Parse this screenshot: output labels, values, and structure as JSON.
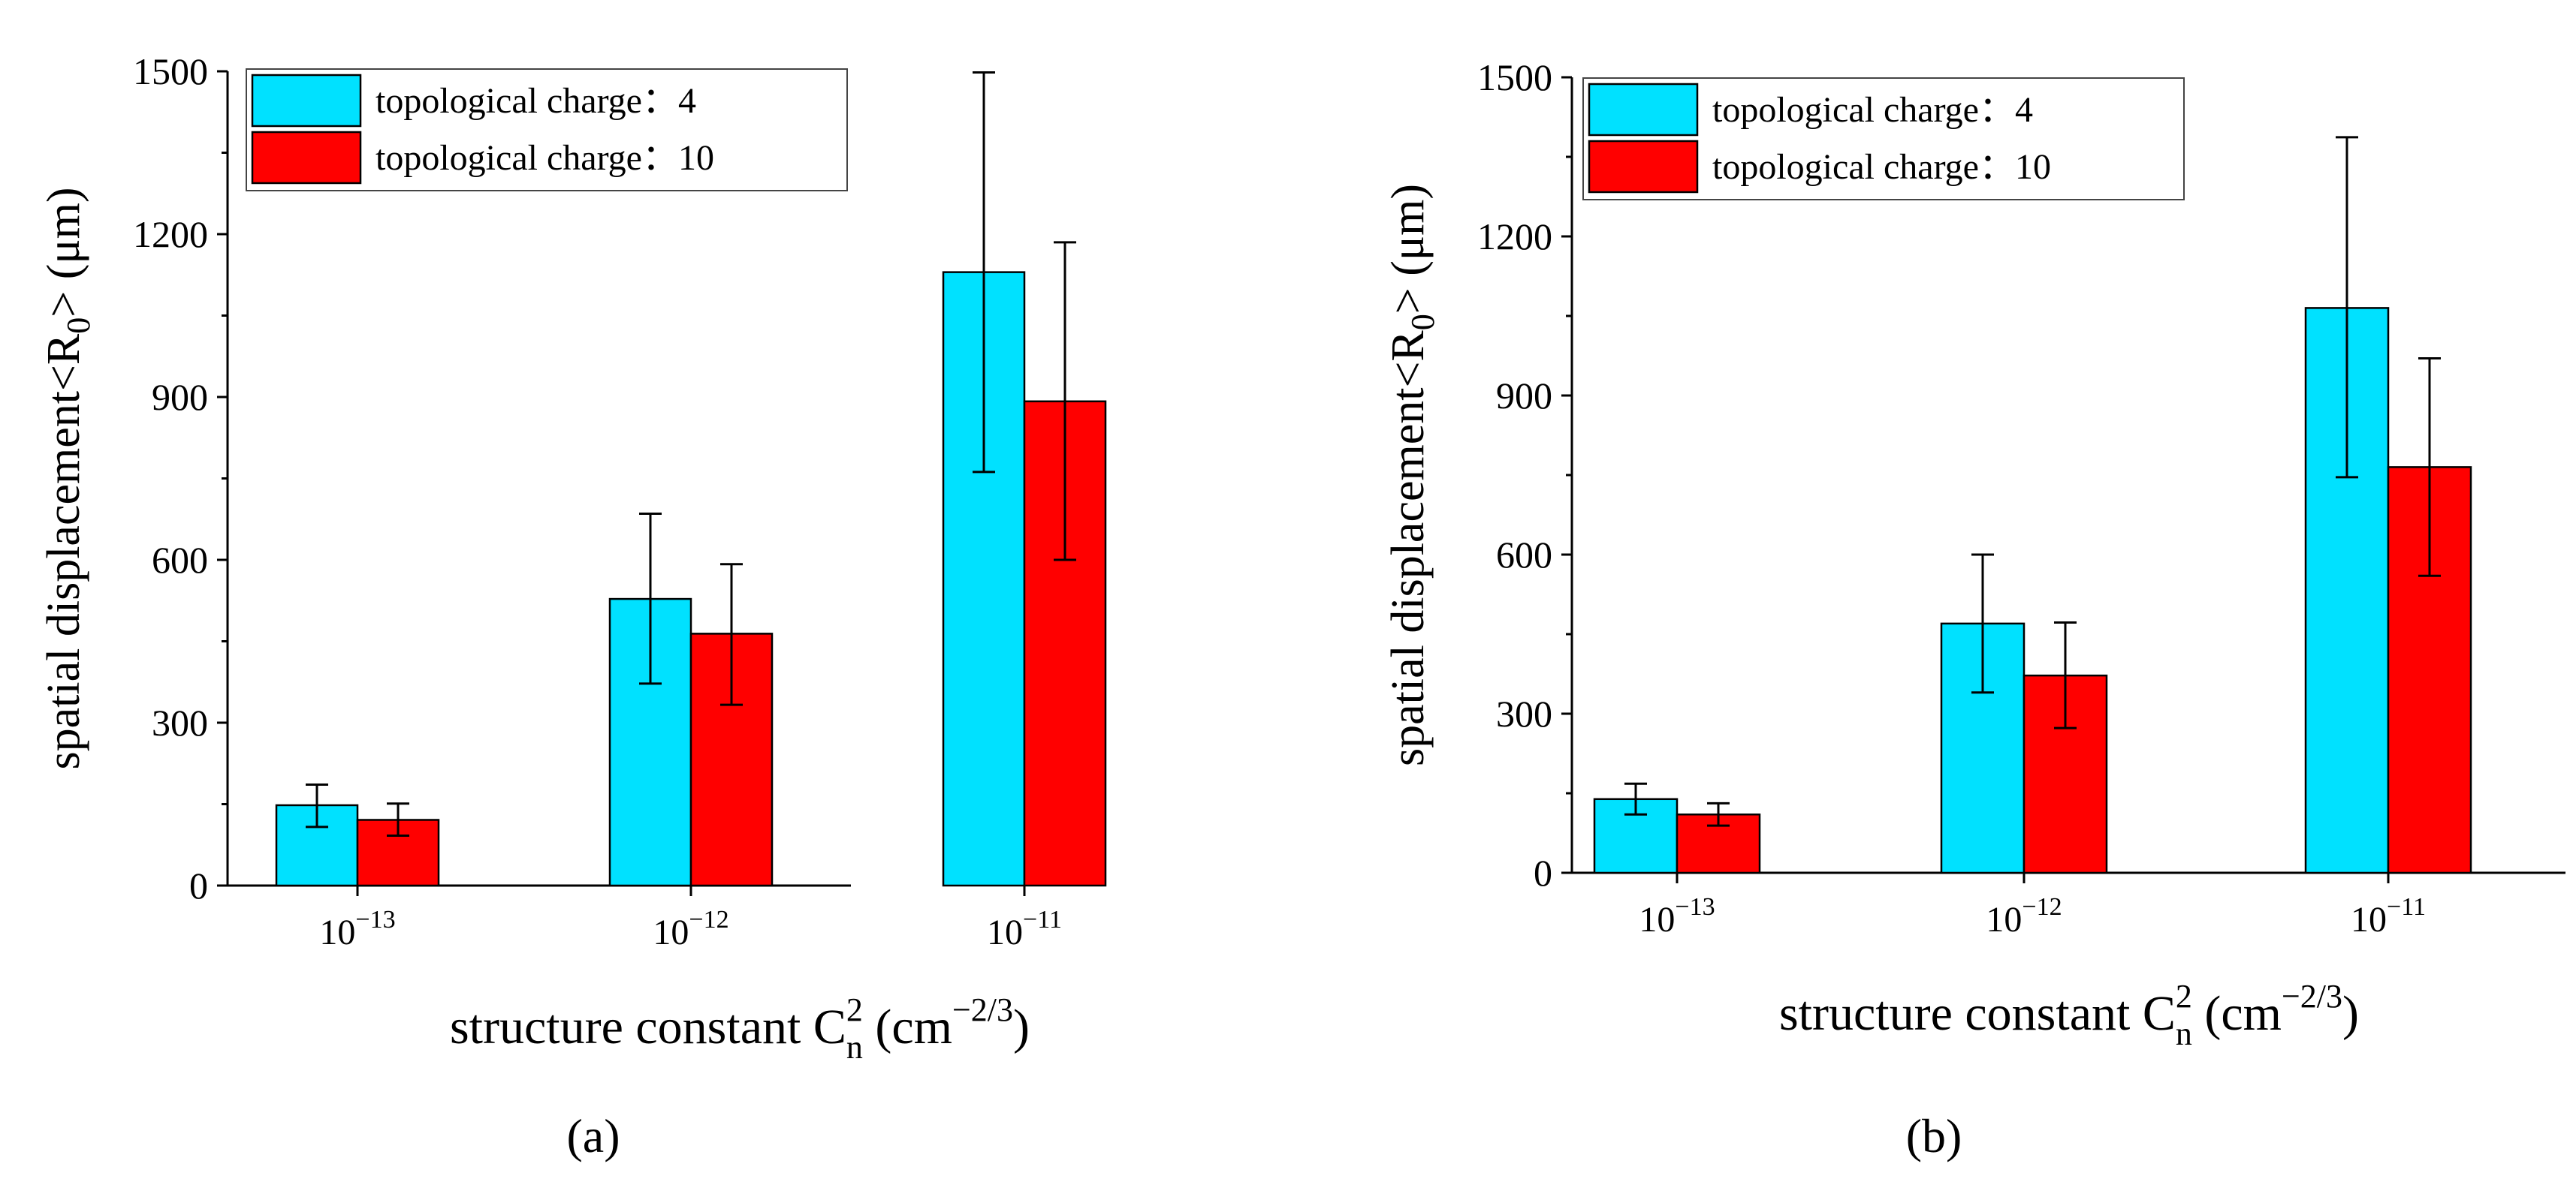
{
  "colors": {
    "series1": "#00e1ff",
    "series2": "#ff0000",
    "axis": "#000000"
  },
  "chart_data": [
    {
      "panel_label": "(a)",
      "type": "bar",
      "title": "",
      "xlabel": "structure constant C_n^2 (cm^-2/3)",
      "ylabel": "spatial displacement<R_0> (μm)",
      "ylim": [
        0,
        1500
      ],
      "yticks": [
        0,
        300,
        600,
        900,
        1200,
        1500
      ],
      "legend_position": "top-left",
      "categories": [
        {
          "base": "10",
          "exp": "−13"
        },
        {
          "base": "10",
          "exp": "−12"
        },
        {
          "base": "10",
          "exp": "−11"
        }
      ],
      "series": [
        {
          "name": "topological charge：4",
          "values": [
            148,
            528,
            1130
          ],
          "err_low": [
            108,
            372,
            762
          ],
          "err_high": [
            186,
            685,
            1498
          ]
        },
        {
          "name": "topological charge：10",
          "values": [
            121,
            464,
            892
          ],
          "err_low": [
            92,
            333,
            600
          ],
          "err_high": [
            151,
            592,
            1185
          ]
        }
      ]
    },
    {
      "panel_label": "(b)",
      "type": "bar",
      "title": "",
      "xlabel": "structure constant C_n^2 (cm^-2/3)",
      "ylabel": "spatial displacement<R_0> (μm)",
      "ylim": [
        0,
        1500
      ],
      "yticks": [
        0,
        300,
        600,
        900,
        1200,
        1500
      ],
      "legend_position": "top-left",
      "categories": [
        {
          "base": "10",
          "exp": "−13"
        },
        {
          "base": "10",
          "exp": "−12"
        },
        {
          "base": "10",
          "exp": "−11"
        }
      ],
      "series": [
        {
          "name": "topological charge：4",
          "values": [
            139,
            470,
            1065
          ],
          "err_low": [
            110,
            340,
            746
          ],
          "err_high": [
            168,
            600,
            1387
          ]
        },
        {
          "name": "topological charge：10",
          "values": [
            110,
            372,
            765
          ],
          "err_low": [
            89,
            273,
            560
          ],
          "err_high": [
            131,
            472,
            970
          ]
        }
      ]
    }
  ],
  "axis_text": {
    "ylabel_main": "spatial displacement<R",
    "ylabel_sub": "0",
    "ylabel_end": "> (μm)",
    "xlabel_main": "structure constant C",
    "xlabel_sup": "2",
    "xlabel_sub": "n",
    "xlabel_unit_open": " (cm",
    "xlabel_unit_sup": "−2/3",
    "xlabel_unit_close": ")"
  }
}
